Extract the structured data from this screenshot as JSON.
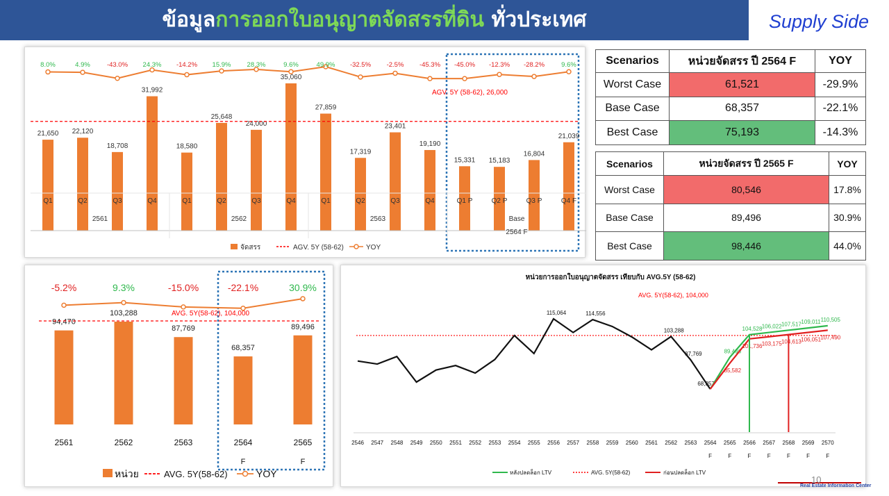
{
  "header": {
    "title_part1": "ข้อมูล",
    "title_part2": "การออกใบอนุญาตจัดสรรที่ดิน",
    "title_part3": " ทั่วประเทศ",
    "supply_label": "Supply Side"
  },
  "page_number": "10",
  "logo_text": "Real Estate Information Center",
  "colors": {
    "header_bg": "#2e5597",
    "bar": "#ed7d31",
    "avg_line": "#ff0000",
    "yoy_line": "#ed7d31",
    "yoy_pos": "#2fb84d",
    "yoy_neg": "#e02020",
    "worst_fill": "#f26b6b",
    "best_fill": "#63be7b",
    "forecast_box": "#2e75b6"
  },
  "chart_data": [
    {
      "type": "bar",
      "title": "",
      "categories": [
        "Q1",
        "Q2",
        "Q3",
        "Q4",
        "Q1",
        "Q2",
        "Q3",
        "Q4",
        "Q1",
        "Q2",
        "Q3",
        "Q4",
        "Q1 P",
        "Q2 P",
        "Q3 P",
        "Q4 F"
      ],
      "groups": [
        {
          "label": "2561",
          "span": 4
        },
        {
          "label": "2562",
          "span": 4
        },
        {
          "label": "2563",
          "span": 4
        },
        {
          "label": "2564 F",
          "span": 4,
          "sublabel": "Base"
        }
      ],
      "values": [
        21650,
        22120,
        18708,
        31992,
        18580,
        25648,
        24000,
        35060,
        27859,
        17319,
        23401,
        19190,
        15331,
        15183,
        16804,
        21039
      ],
      "value_labels": [
        "21,650",
        "22,120",
        "18,708",
        "31,992",
        "18,580",
        "25,648",
        "24,000",
        "35,060",
        "27,859",
        "17,319",
        "23,401",
        "19,190",
        "15,331",
        "15,183",
        "16,804",
        "21,039"
      ],
      "yoy": [
        8.0,
        4.9,
        -43.0,
        24.3,
        -14.2,
        15.9,
        28.3,
        9.6,
        49.9,
        -32.5,
        -2.5,
        -45.3,
        -45.0,
        -12.3,
        -28.2,
        9.6
      ],
      "yoy_labels": [
        "8.0%",
        "4.9%",
        "-43.0%",
        "24.3%",
        "-14.2%",
        "15.9%",
        "28.3%",
        "9.6%",
        "49.9%",
        "-32.5%",
        "-2.5%",
        "-45.3%",
        "-45.0%",
        "-12.3%",
        "-28.2%",
        "9.6%"
      ],
      "avg_value": 26000,
      "avg_label": "AGV. 5Y (58-62),  26,000",
      "legend": [
        "จัดสรร",
        "AGV. 5Y (58-62)",
        "YOY"
      ]
    },
    {
      "type": "bar",
      "title": "",
      "categories": [
        "2561",
        "2562",
        "2563",
        "2564",
        "2565"
      ],
      "forecast_marks": [
        "",
        "",
        "",
        "F",
        "F"
      ],
      "values": [
        94470,
        103288,
        87769,
        68357,
        89496
      ],
      "value_labels": [
        "94,470",
        "103,288",
        "87,769",
        "68,357",
        "89,496"
      ],
      "yoy": [
        -5.2,
        9.3,
        -15.0,
        -22.1,
        30.9
      ],
      "yoy_labels": [
        "-5.2%",
        "9.3%",
        "-15.0%",
        "-22.1%",
        "30.9%"
      ],
      "avg_value": 104000,
      "avg_label": "AVG. 5Y(58-62),  104,000",
      "legend": [
        "หน่วย",
        "AVG. 5Y(58-62)",
        "YOY"
      ]
    },
    {
      "type": "line",
      "title": "หน่วยการออกใบอนุญาตจัดสรร เทียบกับ AVG.5Y (58-62)",
      "x": [
        "2546",
        "2547",
        "2548",
        "2549",
        "2550",
        "2551",
        "2552",
        "2553",
        "2554",
        "2555",
        "2556",
        "2557",
        "2558",
        "2559",
        "2560",
        "2561",
        "2562",
        "2563",
        "2564",
        "2565",
        "2566",
        "2567",
        "2568",
        "2569",
        "2570"
      ],
      "x_forecast_marks": [
        "",
        "",
        "",
        "",
        "",
        "",
        "",
        "",
        "",
        "",
        "",
        "",
        "",
        "",
        "",
        "",
        "",
        "",
        "F",
        "F",
        "F",
        "F",
        "F",
        "F",
        "F"
      ],
      "series": [
        {
          "name": "",
          "values": [
            87000,
            85000,
            90000,
            73000,
            81000,
            84000,
            79000,
            88000,
            104000,
            92000,
            115064,
            106000,
            114556,
            110000,
            103000,
            94470,
            103288,
            87769,
            68357,
            null,
            null,
            null,
            null,
            null,
            null
          ],
          "labels": {
            "10": "115,064",
            "12": "114,556",
            "16": "103,288",
            "17": "87,769",
            "18": "68,357"
          }
        },
        {
          "name": "หลังปลดล็อก LTV",
          "values": [
            null,
            null,
            null,
            null,
            null,
            null,
            null,
            null,
            null,
            null,
            null,
            null,
            null,
            null,
            null,
            null,
            null,
            null,
            68357,
            89496,
            104528,
            106022,
            107517,
            109011,
            110505
          ],
          "labels": {
            "19": "89,496",
            "20": "104,528",
            "21": "106,022",
            "22": "107,517",
            "23": "109,011",
            "24": "110,505"
          }
        },
        {
          "name": "ก่อนปลดล็อก LTV",
          "values": [
            null,
            null,
            null,
            null,
            null,
            null,
            null,
            null,
            null,
            null,
            null,
            null,
            null,
            null,
            null,
            null,
            null,
            null,
            68357,
            85582,
            101736,
            103175,
            104613,
            106051,
            107490
          ],
          "labels": {
            "19": "85,582",
            "20": "101,736",
            "21": "103,175",
            "22": "104,613",
            "23": "106,051",
            "24": "107,490"
          }
        }
      ],
      "avg_value": 104000,
      "avg_label": "AVG. 5Y(58-62),  104,000",
      "legend": [
        "หลังปลดล็อก LTV",
        "AVG. 5Y(58-62)",
        "ก่อนปลดล็อก LTV"
      ]
    }
  ],
  "table_2564": {
    "headers": [
      "Scenarios",
      "หน่วยจัดสรร ปี 2564 F",
      "YOY"
    ],
    "rows": [
      {
        "scenario": "Worst Case",
        "units": "61,521",
        "yoy": "-29.9%"
      },
      {
        "scenario": "Base Case",
        "units": "68,357",
        "yoy": "-22.1%"
      },
      {
        "scenario": "Best Case",
        "units": "75,193",
        "yoy": "-14.3%"
      }
    ]
  },
  "table_2565": {
    "headers": [
      "Scenarios",
      "หน่วยจัดสรร ปี 2565 F",
      "YOY"
    ],
    "rows": [
      {
        "scenario": "Worst Case",
        "units": "80,546",
        "yoy": "17.8%"
      },
      {
        "scenario": "Base Case",
        "units": "89,496",
        "yoy": "30.9%"
      },
      {
        "scenario": "Best Case",
        "units": "98,446",
        "yoy": "44.0%"
      }
    ]
  }
}
